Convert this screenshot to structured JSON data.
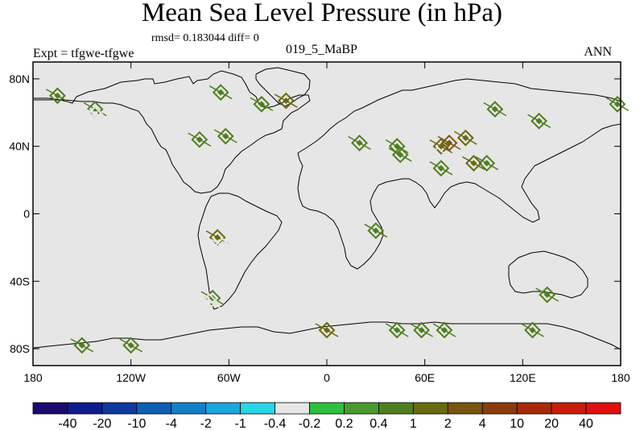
{
  "figure": {
    "title": "Mean Sea Level Pressure (in hPa)",
    "stats_text": "rmsd= 0.183044 diff= 0",
    "left_label": "Expt = tfgwe-tfgwe",
    "center_label": "019_5_MaBP",
    "right_label": "ANN"
  },
  "chart_data": {
    "type": "heatmap",
    "title": "Mean Sea Level Pressure (in hPa)",
    "xlabel": "",
    "ylabel": "",
    "xlim": [
      -180,
      180
    ],
    "ylim": [
      -90,
      90
    ],
    "x_ticks": [
      {
        "value": -180,
        "label": "180"
      },
      {
        "value": -120,
        "label": "120W"
      },
      {
        "value": -60,
        "label": "60W"
      },
      {
        "value": 0,
        "label": "0"
      },
      {
        "value": 60,
        "label": "60E"
      },
      {
        "value": 120,
        "label": "120E"
      },
      {
        "value": 180,
        "label": "180"
      }
    ],
    "y_ticks": [
      {
        "value": 80,
        "label": "80N"
      },
      {
        "value": 40,
        "label": "40N"
      },
      {
        "value": 0,
        "label": "0"
      },
      {
        "value": -40,
        "label": "40S"
      },
      {
        "value": -80,
        "label": "80S"
      }
    ],
    "colorbar": {
      "colors": [
        "#1d0a6e",
        "#0e1d8c",
        "#0d3a9e",
        "#0f5fb5",
        "#1480c8",
        "#1aa7dc",
        "#29d5e6",
        "#e6e6e6",
        "#2dc040",
        "#4a9a30",
        "#4f7e1f",
        "#6a6a10",
        "#7a5510",
        "#8b3c0c",
        "#a82a0a",
        "#c81c0a",
        "#e01010"
      ],
      "labels": [
        "-40",
        "-20",
        "-10",
        "-4",
        "-2",
        "-1",
        "-0.4",
        "-0.2",
        "0.2",
        "0.4",
        "1",
        "2",
        "4",
        "10",
        "20",
        "40"
      ]
    },
    "anomalies": [
      {
        "lon": -142,
        "lat": 62,
        "level": 0.4
      },
      {
        "lon": -142,
        "lat": 59,
        "level": -0.4
      },
      {
        "lon": -65,
        "lat": 72,
        "level": 0.4
      },
      {
        "lon": -40,
        "lat": 65,
        "level": 0.4
      },
      {
        "lon": -25,
        "lat": 67,
        "level": 1
      },
      {
        "lon": -78,
        "lat": 44,
        "level": 0.4
      },
      {
        "lon": -62,
        "lat": 46,
        "level": 0.4
      },
      {
        "lon": -67,
        "lat": -14,
        "level": 1
      },
      {
        "lon": -64,
        "lat": -19,
        "level": -0.4
      },
      {
        "lon": -70,
        "lat": -50,
        "level": 0.4
      },
      {
        "lon": -72,
        "lat": -52,
        "level": -0.4
      },
      {
        "lon": 0,
        "lat": -69,
        "level": 1
      },
      {
        "lon": 43,
        "lat": -69,
        "level": 0.4
      },
      {
        "lon": 58,
        "lat": -69,
        "level": 0.4
      },
      {
        "lon": 72,
        "lat": -69,
        "level": 0.4
      },
      {
        "lon": 126,
        "lat": -69,
        "level": 0.4
      },
      {
        "lon": -150,
        "lat": -78,
        "level": 0.4
      },
      {
        "lon": -120,
        "lat": -78,
        "level": 0.4
      },
      {
        "lon": 43,
        "lat": 40,
        "level": 0.4
      },
      {
        "lon": 45,
        "lat": 35,
        "level": 0.4
      },
      {
        "lon": 70,
        "lat": 40,
        "level": 1
      },
      {
        "lon": 75,
        "lat": 42,
        "level": 2
      },
      {
        "lon": 85,
        "lat": 45,
        "level": 1
      },
      {
        "lon": 90,
        "lat": 30,
        "level": 1
      },
      {
        "lon": 98,
        "lat": 30,
        "level": 0.4
      },
      {
        "lon": 68,
        "lat": 35,
        "level": -0.4
      },
      {
        "lon": 70,
        "lat": 27,
        "level": 0.4
      },
      {
        "lon": 103,
        "lat": 62,
        "level": 0.4
      },
      {
        "lon": 130,
        "lat": 55,
        "level": 0.4
      },
      {
        "lon": 138,
        "lat": 60,
        "level": -0.4
      },
      {
        "lon": 135,
        "lat": -48,
        "level": 0.4
      },
      {
        "lon": 20,
        "lat": 42,
        "level": 0.4
      },
      {
        "lon": 30,
        "lat": -10,
        "level": 0.4
      },
      {
        "lon": -165,
        "lat": 70,
        "level": 0.4
      },
      {
        "lon": 178,
        "lat": 65,
        "level": 0.4
      }
    ]
  }
}
